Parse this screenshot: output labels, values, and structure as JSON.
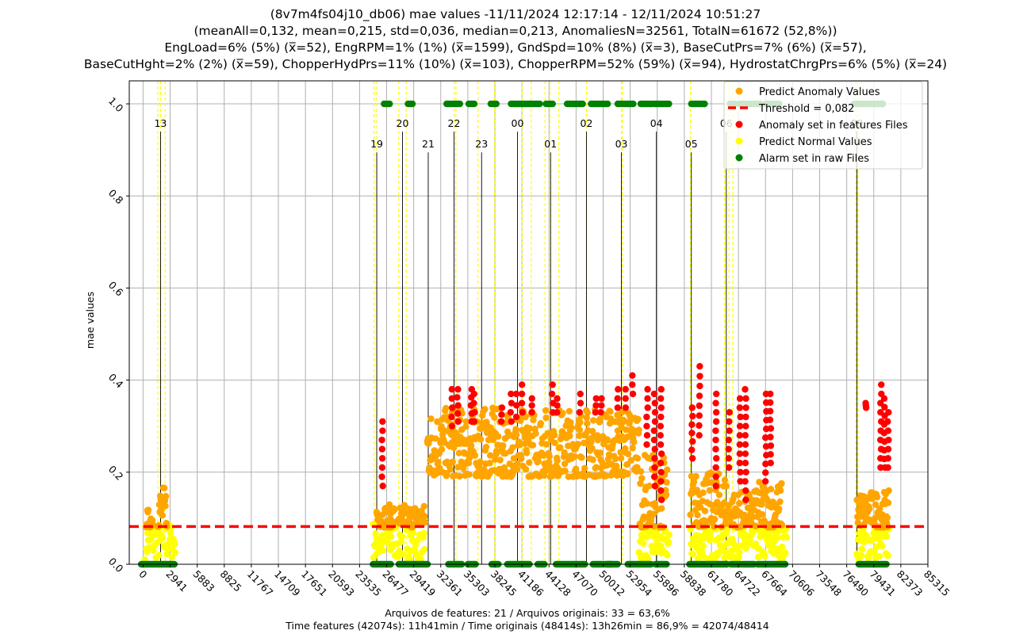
{
  "chart_data": {
    "type": "scatter",
    "title_lines": [
      "(8v7m4fs04j10_db06) mae values -11/11/2024 12:17:14 - 12/11/2024 10:51:27",
      "(meanAll=0,132, mean=0,215, std=0,036, median=0,213, AnomaliesN=32561, TotalN=61672 (52,8%))",
      "EngLoad=6% (5%) (x̅=52), EngRPM=1% (1%) (x̅=1599), GndSpd=10% (8%) (x̅=3), BaseCutPrs=7% (6%) (x̅=57),",
      "BaseCutHght=2% (2%) (x̅=59), ChopperHydPrs=11% (10%) (x̅=103), ChopperRPM=52% (59%) (x̅=94), HydrostatChrgPrs=6% (5%) (x̅=24)"
    ],
    "ylabel": "mae values",
    "xlabel_lines": [
      "Arquivos de features: 21 / Arquivos originais: 33 = 63,6%",
      "Time features (42074s): 11h41min / Time originais (48414s): 13h26min = 86,9% = 42074/48414"
    ],
    "x_ticks": [
      "0",
      "2941",
      "5883",
      "8825",
      "11767",
      "14709",
      "17651",
      "20593",
      "23535",
      "26477",
      "29419",
      "32361",
      "35303",
      "38245",
      "41186",
      "44128",
      "47070",
      "50012",
      "52954",
      "55896",
      "58838",
      "61780",
      "64722",
      "67664",
      "70606",
      "73548",
      "76490",
      "79431",
      "82373",
      "85315"
    ],
    "y_ticks": [
      "0.0",
      "0.2",
      "0.4",
      "0.6",
      "0.8",
      "1.0"
    ],
    "xlim": [
      -1500,
      85315
    ],
    "ylim": [
      0,
      1.05
    ],
    "threshold": 0.082,
    "grid": true,
    "legend_position": "top-right",
    "legend": [
      {
        "label": "Predict Anomaly Values",
        "kind": "dot",
        "color": "#FFA500"
      },
      {
        "label": "Threshold = 0,082",
        "kind": "dash",
        "color": "#FF0000"
      },
      {
        "label": "Anomaly set in features Files",
        "kind": "dot",
        "color": "#FF0000"
      },
      {
        "label": "Predict Normal Values",
        "kind": "dot",
        "color": "#FFFF00"
      },
      {
        "label": "Alarm set in raw Files",
        "kind": "dot",
        "color": "#008000"
      }
    ],
    "hour_markers": [
      {
        "label": "13",
        "x": 1900,
        "y": 0.95
      },
      {
        "label": "19",
        "x": 25400,
        "y": 0.905
      },
      {
        "label": "20",
        "x": 28200,
        "y": 0.95
      },
      {
        "label": "21",
        "x": 31000,
        "y": 0.905
      },
      {
        "label": "22",
        "x": 33800,
        "y": 0.95
      },
      {
        "label": "23",
        "x": 36800,
        "y": 0.905
      },
      {
        "label": "00",
        "x": 40700,
        "y": 0.95
      },
      {
        "label": "01",
        "x": 44300,
        "y": 0.905
      },
      {
        "label": "02",
        "x": 48200,
        "y": 0.95
      },
      {
        "label": "03",
        "x": 52000,
        "y": 0.905
      },
      {
        "label": "04",
        "x": 55800,
        "y": 0.95
      },
      {
        "label": "05",
        "x": 59600,
        "y": 0.905
      },
      {
        "label": "06",
        "x": 63400,
        "y": 0.95
      },
      {
        "label": "09",
        "x": 77600,
        "y": 0.95
      }
    ],
    "file_boundaries": [
      1600,
      1900,
      2400,
      25100,
      25400,
      27800,
      28600,
      33800,
      34000,
      36400,
      38200,
      41200,
      42200,
      43700,
      44200,
      45200,
      48200,
      52000,
      52100,
      59500,
      63200,
      63700,
      64100,
      77500,
      77700
    ],
    "alarm_x": [
      [
        -200,
        3500
      ],
      [
        25000,
        27000
      ],
      [
        27800,
        31000
      ],
      [
        33200,
        34700
      ],
      [
        35300,
        36200
      ],
      [
        37900,
        38700
      ],
      [
        39600,
        42000
      ],
      [
        42900,
        43700
      ],
      [
        44900,
        48100
      ],
      [
        48900,
        49900
      ],
      [
        50200,
        51000
      ],
      [
        50500,
        51600
      ],
      [
        52700,
        55300
      ],
      [
        55700,
        57000
      ],
      [
        59400,
        63500
      ],
      [
        63900,
        65000
      ],
      [
        65200,
        66400
      ],
      [
        66800,
        69900
      ],
      [
        77800,
        80800
      ]
    ],
    "alarm_top_x": [
      [
        26200,
        26900
      ],
      [
        28800,
        29300
      ],
      [
        33000,
        34500
      ],
      [
        35400,
        36100
      ],
      [
        37800,
        38500
      ],
      [
        40000,
        43200
      ],
      [
        43800,
        44600
      ],
      [
        46100,
        47800
      ],
      [
        48700,
        50600
      ],
      [
        51600,
        53300
      ],
      [
        54100,
        55300
      ],
      [
        55600,
        57200
      ],
      [
        59600,
        61100
      ],
      [
        63800,
        64400
      ],
      [
        64900,
        66100
      ],
      [
        66400,
        67200
      ],
      [
        67700,
        69200
      ],
      [
        77300,
        80500
      ]
    ],
    "normal_segments": [
      {
        "x0": 200,
        "x1": 3500,
        "lo": 0.01,
        "hi": 0.09
      },
      {
        "x0": 25000,
        "x1": 30600,
        "lo": 0.01,
        "hi": 0.095
      },
      {
        "x0": 53900,
        "x1": 57200,
        "lo": 0.01,
        "hi": 0.08
      },
      {
        "x0": 59500,
        "x1": 63500,
        "lo": 0.01,
        "hi": 0.08
      },
      {
        "x0": 63500,
        "x1": 66400,
        "lo": 0.01,
        "hi": 0.08
      },
      {
        "x0": 66600,
        "x1": 70000,
        "lo": 0.01,
        "hi": 0.08
      },
      {
        "x0": 77600,
        "x1": 81100,
        "lo": 0.01,
        "hi": 0.08
      }
    ],
    "anomaly_segments": [
      {
        "x0": 300,
        "x1": 1100,
        "lo": 0.08,
        "hi": 0.12
      },
      {
        "x0": 1600,
        "x1": 2600,
        "lo": 0.08,
        "hi": 0.17
      },
      {
        "x0": 25400,
        "x1": 27400,
        "lo": 0.08,
        "hi": 0.13
      },
      {
        "x0": 27800,
        "x1": 30700,
        "lo": 0.08,
        "hi": 0.13
      },
      {
        "x0": 30900,
        "x1": 53900,
        "lo": 0.19,
        "hi": 0.34
      },
      {
        "x0": 54000,
        "x1": 57000,
        "lo": 0.08,
        "hi": 0.24
      },
      {
        "x0": 59500,
        "x1": 63500,
        "lo": 0.08,
        "hi": 0.2
      },
      {
        "x0": 63600,
        "x1": 66500,
        "lo": 0.08,
        "hi": 0.16
      },
      {
        "x0": 66600,
        "x1": 69500,
        "lo": 0.08,
        "hi": 0.18
      },
      {
        "x0": 77600,
        "x1": 81100,
        "lo": 0.08,
        "hi": 0.16
      }
    ],
    "red_columns": [
      {
        "x": 26000,
        "lo": 0.17,
        "hi": 0.31
      },
      {
        "x": 33600,
        "lo": 0.3,
        "hi": 0.38
      },
      {
        "x": 34200,
        "lo": 0.31,
        "hi": 0.38
      },
      {
        "x": 35700,
        "lo": 0.31,
        "hi": 0.38
      },
      {
        "x": 36000,
        "lo": 0.31,
        "hi": 0.37
      },
      {
        "x": 39000,
        "lo": 0.31,
        "hi": 0.34
      },
      {
        "x": 40000,
        "lo": 0.31,
        "hi": 0.37
      },
      {
        "x": 40600,
        "lo": 0.32,
        "hi": 0.37
      },
      {
        "x": 41200,
        "lo": 0.33,
        "hi": 0.39
      },
      {
        "x": 42300,
        "lo": 0.33,
        "hi": 0.36
      },
      {
        "x": 44500,
        "lo": 0.33,
        "hi": 0.39
      },
      {
        "x": 45000,
        "lo": 0.33,
        "hi": 0.36
      },
      {
        "x": 47500,
        "lo": 0.33,
        "hi": 0.37
      },
      {
        "x": 49200,
        "lo": 0.33,
        "hi": 0.36
      },
      {
        "x": 49800,
        "lo": 0.33,
        "hi": 0.36
      },
      {
        "x": 51600,
        "lo": 0.34,
        "hi": 0.38
      },
      {
        "x": 52400,
        "lo": 0.34,
        "hi": 0.38
      },
      {
        "x": 53200,
        "lo": 0.37,
        "hi": 0.41
      },
      {
        "x": 54800,
        "lo": 0.26,
        "hi": 0.38
      },
      {
        "x": 55600,
        "lo": 0.17,
        "hi": 0.37
      },
      {
        "x": 56300,
        "lo": 0.14,
        "hi": 0.38
      },
      {
        "x": 59700,
        "lo": 0.23,
        "hi": 0.34
      },
      {
        "x": 60500,
        "lo": 0.28,
        "hi": 0.43
      },
      {
        "x": 62300,
        "lo": 0.17,
        "hi": 0.37
      },
      {
        "x": 63700,
        "lo": 0.21,
        "hi": 0.33
      },
      {
        "x": 64900,
        "lo": 0.18,
        "hi": 0.36
      },
      {
        "x": 65500,
        "lo": 0.14,
        "hi": 0.38
      },
      {
        "x": 67700,
        "lo": 0.18,
        "hi": 0.37
      },
      {
        "x": 68200,
        "lo": 0.22,
        "hi": 0.37
      },
      {
        "x": 78600,
        "lo": 0.34,
        "hi": 0.35
      },
      {
        "x": 80200,
        "lo": 0.21,
        "hi": 0.39
      },
      {
        "x": 80600,
        "lo": 0.21,
        "hi": 0.36
      },
      {
        "x": 81000,
        "lo": 0.21,
        "hi": 0.33
      }
    ],
    "colors": {
      "anomaly": "#FFA500",
      "normal": "#FFFF00",
      "red": "#FF0000",
      "alarm": "#008000",
      "grid": "#b0b0b0",
      "boundary": "#FFFF00",
      "hour_line": "#000000"
    }
  }
}
